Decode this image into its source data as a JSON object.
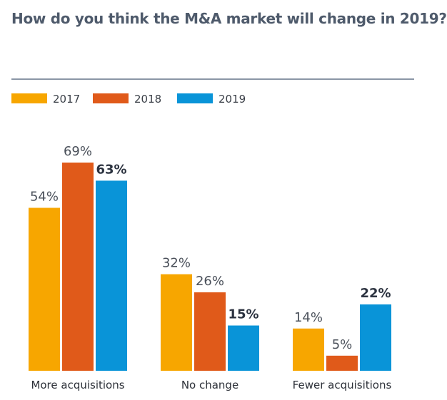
{
  "chart_data": {
    "type": "bar",
    "title": "How do you think the M&A market will change in 2019?",
    "categories": [
      "More acquisitions",
      "No change",
      "Fewer acquisitions"
    ],
    "series": [
      {
        "name": "2017",
        "color": "#f7a600",
        "values": [
          54,
          32,
          14
        ],
        "labels": [
          "54%",
          "32%",
          "14%"
        ]
      },
      {
        "name": "2018",
        "color": "#e05a1a",
        "values": [
          69,
          26,
          5
        ],
        "labels": [
          "69%",
          "26%",
          "5%"
        ]
      },
      {
        "name": "2019",
        "color": "#0994d8",
        "values": [
          63,
          15,
          22
        ],
        "labels": [
          "63%",
          "15%",
          "22%"
        ]
      }
    ],
    "highlight_series": "2019",
    "ylim": [
      0,
      69
    ],
    "grid": false,
    "legend_position": "top-left",
    "xlabel": "",
    "ylabel": ""
  }
}
